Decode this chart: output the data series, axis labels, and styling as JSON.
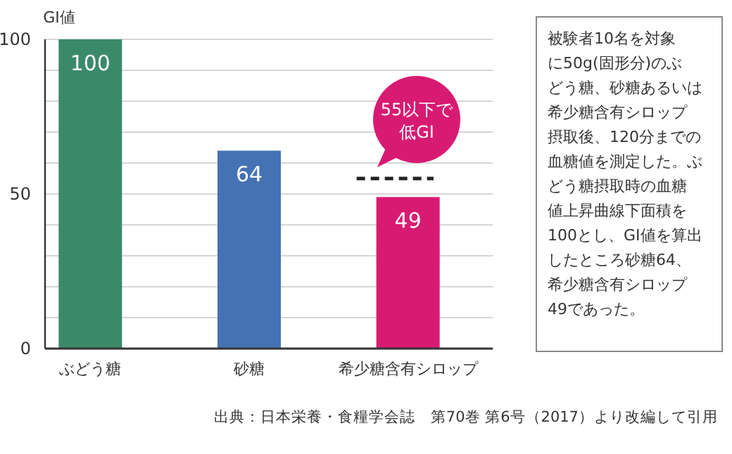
{
  "chart_data": {
    "type": "bar",
    "ylabel": "GI値",
    "categories": [
      "ぶどう糖",
      "砂糖",
      "希少糖含有シロップ"
    ],
    "values": [
      100,
      64,
      49
    ],
    "colors": [
      "#3a8a6a",
      "#4472b4",
      "#d81b72"
    ],
    "data_labels": true,
    "ylim": [
      0,
      100
    ],
    "yticks": [
      0,
      {
        "value": 10,
        "label": null
      },
      {
        "value": 20,
        "label": null
      },
      {
        "value": 30,
        "label": null
      },
      {
        "value": 40,
        "label": null
      },
      50,
      {
        "value": 60,
        "label": null
      },
      {
        "value": 70,
        "label": null
      },
      {
        "value": 80,
        "label": null
      },
      {
        "value": 90,
        "label": null
      },
      100
    ],
    "grid": "y",
    "ref_lines": [
      {
        "axis": "y",
        "value": 55,
        "label": "55以下で低GI",
        "color": "#222222",
        "line_style": "dashed"
      }
    ],
    "annotations": [
      "被験者10名を対象に50g(固形分)のぶどう糖、砂糖あるいは希少糖含有シロップ摂取後、120分までの血糖値を測定した。ぶどう糖摂取時の血糖値上昇曲線下面積を100とし、GI値を算出したところ砂糖64、希少糖含有シロップ49であった。",
      "出典：日本栄養・食糧学会誌　第70巻 第6号（2017）より改編して引用"
    ]
  }
}
